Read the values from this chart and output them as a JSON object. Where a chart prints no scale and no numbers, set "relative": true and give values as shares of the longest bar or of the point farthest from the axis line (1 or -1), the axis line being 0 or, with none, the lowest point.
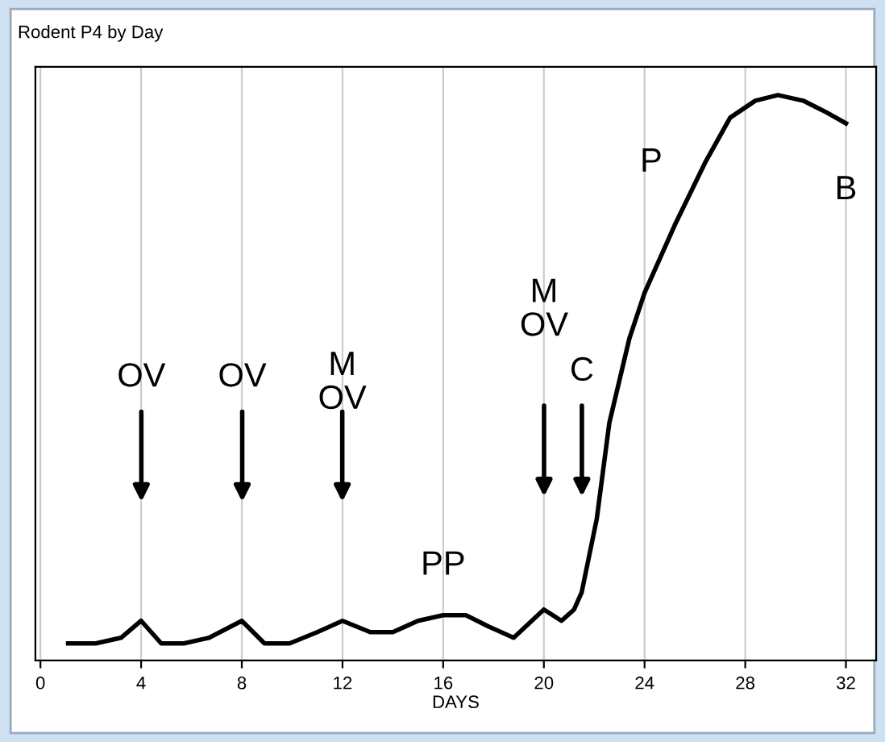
{
  "chart_data": {
    "type": "line",
    "title": "Rodent P4 by Day",
    "xlabel": "DAYS",
    "relative": true,
    "xlim": [
      -0.2,
      33.2
    ],
    "xticks": [
      0,
      4,
      8,
      12,
      16,
      20,
      24,
      28,
      32
    ],
    "grid": "x",
    "marker": "none",
    "line_style": "solid",
    "series": [
      {
        "color": "#000000",
        "x": [
          1.1,
          2.2,
          3.2,
          4.0,
          4.8,
          5.7,
          6.7,
          8.0,
          8.9,
          9.9,
          11.0,
          12.0,
          13.1,
          14.0,
          15.0,
          16.0,
          16.9,
          17.8,
          18.8,
          20.0,
          20.7,
          21.2,
          21.5,
          22.1,
          22.6,
          23.4,
          24.0,
          25.2,
          26.4,
          27.4,
          28.4,
          29.3,
          30.3,
          31.2,
          32.0
        ],
        "values": [
          0.03,
          0.03,
          0.04,
          0.07,
          0.03,
          0.03,
          0.04,
          0.07,
          0.03,
          0.03,
          0.05,
          0.07,
          0.05,
          0.05,
          0.07,
          0.08,
          0.08,
          0.06,
          0.04,
          0.09,
          0.07,
          0.09,
          0.12,
          0.25,
          0.42,
          0.57,
          0.65,
          0.77,
          0.88,
          0.96,
          0.99,
          1.0,
          0.99,
          0.97,
          0.95
        ]
      }
    ],
    "annotations": [
      "OV",
      "OV",
      "M\nOV",
      "M\nOV",
      "C",
      {
        "text": "PP",
        "x": 16,
        "y": 0.08
      },
      {
        "text": "P",
        "x": 26.4,
        "y": 0.88
      },
      {
        "text": "B",
        "x": 32,
        "y": 0.95
      }
    ]
  }
}
